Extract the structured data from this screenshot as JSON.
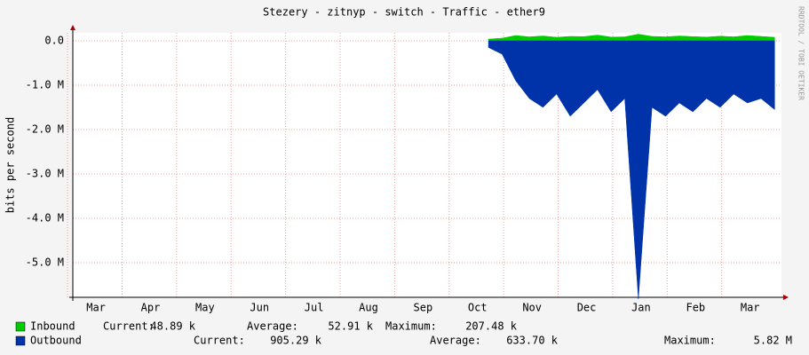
{
  "chart_data": {
    "type": "area",
    "title": "Stezery - zitnyp - switch - Traffic - ether9",
    "y_label": "bits per second",
    "watermark": "RRDTOOL / TOBI OETIKER",
    "categories": [
      null,
      "Mar",
      null,
      null,
      null,
      "Apr",
      null,
      null,
      null,
      "May",
      null,
      null,
      null,
      "Jun",
      null,
      null,
      null,
      "Jul",
      null,
      null,
      null,
      "Aug",
      null,
      null,
      null,
      "Sep",
      null,
      null,
      null,
      "Oct",
      null,
      null,
      null,
      "Nov",
      null,
      null,
      null,
      "Dec",
      null,
      null,
      null,
      "Jan",
      null,
      null,
      null,
      "Feb",
      null,
      null,
      null,
      "Mar",
      null,
      null
    ],
    "ylim": [
      -5780000,
      180000
    ],
    "yticks": [
      {
        "value": 0,
        "label": "0.0"
      },
      {
        "value": -1000000,
        "label": "-1.0 M"
      },
      {
        "value": -2000000,
        "label": "-2.0 M"
      },
      {
        "value": -3000000,
        "label": "-3.0 M"
      },
      {
        "value": -4000000,
        "label": "-4.0 M"
      },
      {
        "value": -5000000,
        "label": "-5.0 M"
      }
    ],
    "grid": true,
    "series": [
      {
        "name": "Inbound",
        "color": "#00cc00",
        "values": [
          null,
          null,
          null,
          null,
          null,
          null,
          null,
          null,
          null,
          null,
          null,
          null,
          null,
          null,
          null,
          null,
          null,
          null,
          null,
          null,
          null,
          null,
          null,
          null,
          null,
          null,
          null,
          null,
          null,
          null,
          40000,
          60000,
          120000,
          90000,
          110000,
          80000,
          100000,
          95000,
          130000,
          85000,
          90000,
          150000,
          100000,
          90000,
          110000,
          95000,
          85000,
          105000,
          90000,
          120000,
          100000,
          80000
        ],
        "stats": {
          "current_label": "Current:",
          "current": "48.89 k",
          "average_label": "Average:",
          "average": "52.91 k",
          "maximum_label": "Maximum:",
          "maximum": "207.48 k"
        }
      },
      {
        "name": "Outbound",
        "color": "#0033aa",
        "values": [
          null,
          null,
          null,
          null,
          null,
          null,
          null,
          null,
          null,
          null,
          null,
          null,
          null,
          null,
          null,
          null,
          null,
          null,
          null,
          null,
          null,
          null,
          null,
          null,
          null,
          null,
          null,
          null,
          null,
          null,
          -150000,
          -300000,
          -900000,
          -1300000,
          -1500000,
          -1200000,
          -1700000,
          -1400000,
          -1100000,
          -1600000,
          -1300000,
          -5820000,
          -1500000,
          -1700000,
          -1400000,
          -1600000,
          -1300000,
          -1500000,
          -1200000,
          -1400000,
          -1300000,
          -1550000
        ],
        "stats": {
          "current_label": "Current:",
          "current": "905.29 k",
          "average_label": "Average:",
          "average": "633.70 k",
          "maximum_label": "Maximum:",
          "maximum": "5.82 M"
        }
      }
    ]
  }
}
